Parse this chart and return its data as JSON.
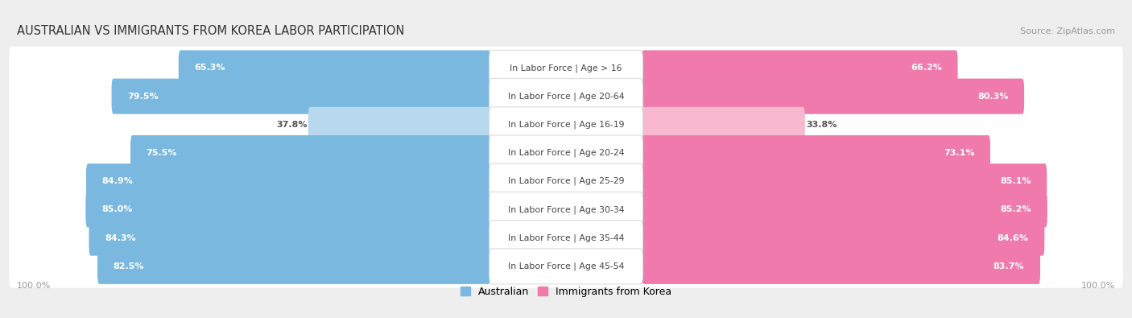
{
  "title": "AUSTRALIAN VS IMMIGRANTS FROM KOREA LABOR PARTICIPATION",
  "source": "Source: ZipAtlas.com",
  "categories": [
    "In Labor Force | Age > 16",
    "In Labor Force | Age 20-64",
    "In Labor Force | Age 16-19",
    "In Labor Force | Age 20-24",
    "In Labor Force | Age 25-29",
    "In Labor Force | Age 30-34",
    "In Labor Force | Age 35-44",
    "In Labor Force | Age 45-54"
  ],
  "australian_values": [
    65.3,
    79.5,
    37.8,
    75.5,
    84.9,
    85.0,
    84.3,
    82.5
  ],
  "korean_values": [
    66.2,
    80.3,
    33.8,
    73.1,
    85.1,
    85.2,
    84.6,
    83.7
  ],
  "australian_color": "#7ab8e0",
  "korean_color": "#f07aab",
  "australian_color_light": "#b8d8ee",
  "korean_color_light": "#f7b8d0",
  "bg_color": "#eeeeee",
  "title_fontsize": 10.5,
  "legend_fontsize": 9,
  "x_axis_label": "100.0%",
  "x_axis_label_right": "100.0%"
}
